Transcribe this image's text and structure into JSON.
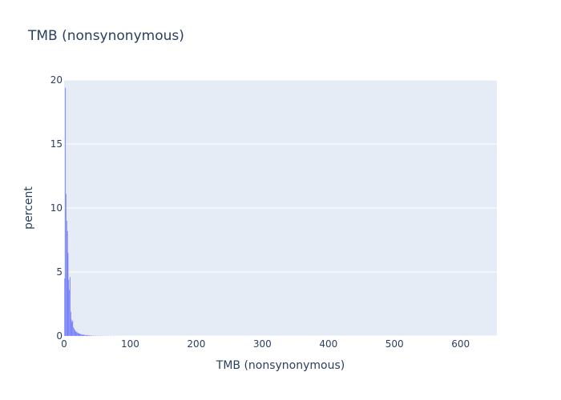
{
  "chart_data": {
    "type": "bar",
    "title": "TMB (nonsynonymous)",
    "xlabel": "TMB (nonsynonymous)",
    "ylabel": "percent",
    "xlim": [
      0,
      655
    ],
    "ylim": [
      0,
      20
    ],
    "x_ticks": [
      "0",
      "100",
      "200",
      "300",
      "400",
      "500",
      "600"
    ],
    "y_ticks": [
      "0",
      "5",
      "10",
      "15",
      "20"
    ],
    "grid": true,
    "bar_color": "#636efa",
    "plot_bg": "#e5ecf6",
    "bin_width": 1,
    "bins_x": [
      1,
      2,
      3,
      4,
      5,
      6,
      7,
      8,
      9,
      10,
      11,
      12,
      13,
      14,
      15,
      16,
      17,
      18,
      19,
      20,
      21,
      22,
      23,
      24,
      25,
      26,
      27,
      28,
      29,
      30,
      31,
      32,
      33,
      34,
      35,
      36,
      37,
      38,
      39,
      40,
      42,
      44,
      46,
      48,
      50,
      52,
      55,
      58,
      61,
      64,
      67,
      70,
      75,
      80,
      85
    ],
    "values": [
      4.5,
      19.4,
      11.1,
      9.0,
      8.2,
      6.5,
      4.4,
      3.6,
      4.6,
      1.9,
      1.3,
      1.1,
      1.2,
      0.7,
      0.6,
      0.5,
      0.4,
      0.35,
      0.3,
      0.3,
      0.25,
      0.2,
      0.2,
      0.18,
      0.15,
      0.15,
      0.12,
      0.12,
      0.1,
      0.1,
      0.1,
      0.08,
      0.08,
      0.07,
      0.07,
      0.06,
      0.06,
      0.05,
      0.05,
      0.05,
      0.04,
      0.04,
      0.04,
      0.03,
      0.03,
      0.03,
      0.03,
      0.02,
      0.02,
      0.02,
      0.02,
      0.02,
      0.01,
      0.01,
      0.01
    ]
  }
}
